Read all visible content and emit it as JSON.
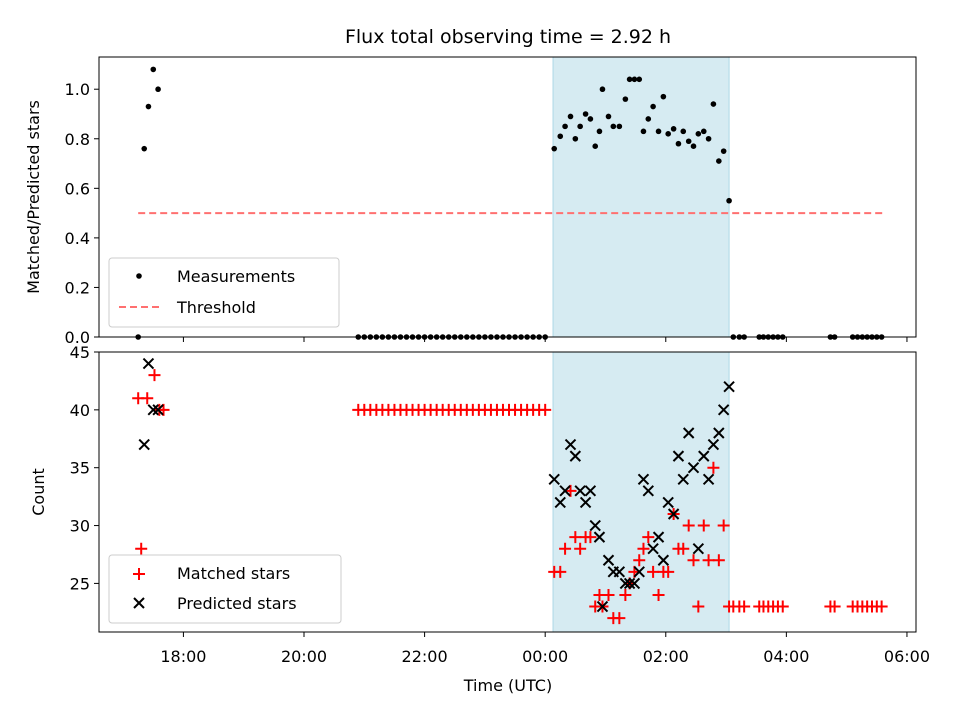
{
  "chart_data": {
    "title": "Flux total observing time = 2.92 h",
    "xlabel": "Time (UTC)",
    "x_unit": "hours since 00:00 UTC",
    "xlim": [
      -7.4,
      6.15
    ],
    "x_ticks": [
      {
        "value": -6,
        "label": "18:00"
      },
      {
        "value": -4,
        "label": "20:00"
      },
      {
        "value": -2,
        "label": "22:00"
      },
      {
        "value": 0,
        "label": "00:00"
      },
      {
        "value": 2,
        "label": "02:00"
      },
      {
        "value": 4,
        "label": "04:00"
      },
      {
        "value": 6,
        "label": "06:00"
      }
    ],
    "shaded_interval": {
      "start": 0.13,
      "end": 3.05,
      "color": "#add8e6"
    },
    "panels": [
      {
        "name": "ratio",
        "type": "scatter",
        "ylabel": "Matched/Predicted stars",
        "ylim": [
          0,
          1.13
        ],
        "y_ticks": [
          {
            "value": 0.0,
            "label": "0.0"
          },
          {
            "value": 0.2,
            "label": "0.2"
          },
          {
            "value": 0.4,
            "label": "0.4"
          },
          {
            "value": 0.6,
            "label": "0.6"
          },
          {
            "value": 0.8,
            "label": "0.8"
          },
          {
            "value": 1.0,
            "label": "1.0"
          }
        ],
        "legend_position": "lower-left",
        "series": [
          {
            "name": "Measurements",
            "marker": "dot",
            "color": "#000000",
            "points": [
              [
                -6.75,
                0.0
              ],
              [
                -6.65,
                0.76
              ],
              [
                -6.58,
                0.93
              ],
              [
                -6.5,
                1.08
              ],
              [
                -6.42,
                1.0
              ],
              [
                -3.1,
                0.0
              ],
              [
                -3.0,
                0.0
              ],
              [
                -2.9,
                0.0
              ],
              [
                -2.8,
                0.0
              ],
              [
                -2.7,
                0.0
              ],
              [
                -2.6,
                0.0
              ],
              [
                -2.5,
                0.0
              ],
              [
                -2.4,
                0.0
              ],
              [
                -2.3,
                0.0
              ],
              [
                -2.2,
                0.0
              ],
              [
                -2.1,
                0.0
              ],
              [
                -2.0,
                0.0
              ],
              [
                -1.9,
                0.0
              ],
              [
                -1.8,
                0.0
              ],
              [
                -1.7,
                0.0
              ],
              [
                -1.6,
                0.0
              ],
              [
                -1.5,
                0.0
              ],
              [
                -1.4,
                0.0
              ],
              [
                -1.3,
                0.0
              ],
              [
                -1.2,
                0.0
              ],
              [
                -1.1,
                0.0
              ],
              [
                -1.0,
                0.0
              ],
              [
                -0.9,
                0.0
              ],
              [
                -0.8,
                0.0
              ],
              [
                -0.7,
                0.0
              ],
              [
                -0.6,
                0.0
              ],
              [
                -0.5,
                0.0
              ],
              [
                -0.4,
                0.0
              ],
              [
                -0.3,
                0.0
              ],
              [
                -0.2,
                0.0
              ],
              [
                -0.1,
                0.0
              ],
              [
                0.0,
                0.0
              ],
              [
                0.15,
                0.76
              ],
              [
                0.25,
                0.81
              ],
              [
                0.33,
                0.85
              ],
              [
                0.42,
                0.89
              ],
              [
                0.5,
                0.8
              ],
              [
                0.58,
                0.85
              ],
              [
                0.67,
                0.9
              ],
              [
                0.75,
                0.88
              ],
              [
                0.83,
                0.77
              ],
              [
                0.9,
                0.83
              ],
              [
                0.95,
                1.0
              ],
              [
                1.05,
                0.89
              ],
              [
                1.13,
                0.85
              ],
              [
                1.23,
                0.85
              ],
              [
                1.33,
                0.96
              ],
              [
                1.4,
                1.04
              ],
              [
                1.48,
                1.04
              ],
              [
                1.56,
                1.04
              ],
              [
                1.63,
                0.83
              ],
              [
                1.71,
                0.88
              ],
              [
                1.79,
                0.93
              ],
              [
                1.88,
                0.83
              ],
              [
                1.96,
                0.97
              ],
              [
                2.04,
                0.82
              ],
              [
                2.13,
                0.84
              ],
              [
                2.21,
                0.78
              ],
              [
                2.29,
                0.83
              ],
              [
                2.38,
                0.79
              ],
              [
                2.46,
                0.77
              ],
              [
                2.54,
                0.82
              ],
              [
                2.63,
                0.83
              ],
              [
                2.71,
                0.8
              ],
              [
                2.79,
                0.94
              ],
              [
                2.88,
                0.71
              ],
              [
                2.96,
                0.75
              ],
              [
                3.05,
                0.55
              ],
              [
                3.12,
                0.0
              ],
              [
                3.22,
                0.0
              ],
              [
                3.3,
                0.0
              ],
              [
                3.55,
                0.0
              ],
              [
                3.62,
                0.0
              ],
              [
                3.7,
                0.0
              ],
              [
                3.78,
                0.0
              ],
              [
                3.86,
                0.0
              ],
              [
                3.94,
                0.0
              ],
              [
                4.73,
                0.0
              ],
              [
                4.8,
                0.0
              ],
              [
                5.1,
                0.0
              ],
              [
                5.18,
                0.0
              ],
              [
                5.26,
                0.0
              ],
              [
                5.34,
                0.0
              ],
              [
                5.42,
                0.0
              ],
              [
                5.5,
                0.0
              ],
              [
                5.58,
                0.0
              ]
            ]
          },
          {
            "name": "Threshold",
            "marker": "dashed-line",
            "color": "#ff7070",
            "points": [
              [
                -6.75,
                0.5
              ],
              [
                5.6,
                0.5
              ]
            ]
          }
        ]
      },
      {
        "name": "counts",
        "type": "scatter",
        "ylabel": "Count",
        "ylim": [
          20.8,
          45
        ],
        "y_ticks": [
          {
            "value": 25,
            "label": "25"
          },
          {
            "value": 30,
            "label": "30"
          },
          {
            "value": 35,
            "label": "35"
          },
          {
            "value": 40,
            "label": "40"
          },
          {
            "value": 45,
            "label": "45"
          }
        ],
        "legend_position": "lower-left",
        "series": [
          {
            "name": "Matched stars",
            "marker": "plus",
            "color": "#ff0000",
            "points": [
              [
                -6.75,
                41
              ],
              [
                -6.6,
                41
              ],
              [
                -6.7,
                28
              ],
              [
                -6.48,
                43
              ],
              [
                -6.4,
                40
              ],
              [
                -6.33,
                40
              ],
              [
                -3.1,
                40
              ],
              [
                -3.0,
                40
              ],
              [
                -2.9,
                40
              ],
              [
                -2.8,
                40
              ],
              [
                -2.7,
                40
              ],
              [
                -2.6,
                40
              ],
              [
                -2.5,
                40
              ],
              [
                -2.4,
                40
              ],
              [
                -2.3,
                40
              ],
              [
                -2.2,
                40
              ],
              [
                -2.1,
                40
              ],
              [
                -2.0,
                40
              ],
              [
                -1.9,
                40
              ],
              [
                -1.8,
                40
              ],
              [
                -1.7,
                40
              ],
              [
                -1.6,
                40
              ],
              [
                -1.5,
                40
              ],
              [
                -1.4,
                40
              ],
              [
                -1.3,
                40
              ],
              [
                -1.2,
                40
              ],
              [
                -1.1,
                40
              ],
              [
                -1.0,
                40
              ],
              [
                -0.9,
                40
              ],
              [
                -0.8,
                40
              ],
              [
                -0.7,
                40
              ],
              [
                -0.6,
                40
              ],
              [
                -0.5,
                40
              ],
              [
                -0.4,
                40
              ],
              [
                -0.3,
                40
              ],
              [
                -0.2,
                40
              ],
              [
                -0.1,
                40
              ],
              [
                0.0,
                40
              ],
              [
                0.15,
                26
              ],
              [
                0.25,
                26
              ],
              [
                0.33,
                28
              ],
              [
                0.42,
                33
              ],
              [
                0.5,
                29
              ],
              [
                0.58,
                28
              ],
              [
                0.67,
                29
              ],
              [
                0.75,
                29
              ],
              [
                0.83,
                23
              ],
              [
                0.9,
                24
              ],
              [
                0.95,
                23
              ],
              [
                1.05,
                24
              ],
              [
                1.13,
                22
              ],
              [
                1.23,
                22
              ],
              [
                1.33,
                24
              ],
              [
                1.4,
                25
              ],
              [
                1.48,
                26
              ],
              [
                1.56,
                27
              ],
              [
                1.63,
                28
              ],
              [
                1.71,
                29
              ],
              [
                1.79,
                26
              ],
              [
                1.88,
                24
              ],
              [
                1.96,
                26
              ],
              [
                2.04,
                26
              ],
              [
                2.13,
                31
              ],
              [
                2.21,
                28
              ],
              [
                2.29,
                28
              ],
              [
                2.38,
                30
              ],
              [
                2.46,
                27
              ],
              [
                2.54,
                23
              ],
              [
                2.63,
                30
              ],
              [
                2.71,
                27
              ],
              [
                2.79,
                35
              ],
              [
                2.88,
                27
              ],
              [
                2.96,
                30
              ],
              [
                3.05,
                23
              ],
              [
                3.12,
                23
              ],
              [
                3.22,
                23
              ],
              [
                3.3,
                23
              ],
              [
                3.55,
                23
              ],
              [
                3.62,
                23
              ],
              [
                3.7,
                23
              ],
              [
                3.78,
                23
              ],
              [
                3.86,
                23
              ],
              [
                3.94,
                23
              ],
              [
                4.73,
                23
              ],
              [
                4.8,
                23
              ],
              [
                5.1,
                23
              ],
              [
                5.18,
                23
              ],
              [
                5.26,
                23
              ],
              [
                5.34,
                23
              ],
              [
                5.42,
                23
              ],
              [
                5.5,
                23
              ],
              [
                5.58,
                23
              ]
            ]
          },
          {
            "name": "Predicted stars",
            "marker": "x",
            "color": "#000000",
            "points": [
              [
                -6.65,
                37
              ],
              [
                -6.58,
                44
              ],
              [
                -6.5,
                40
              ],
              [
                -6.42,
                40
              ],
              [
                0.15,
                34
              ],
              [
                0.25,
                32
              ],
              [
                0.33,
                33
              ],
              [
                0.42,
                37
              ],
              [
                0.5,
                36
              ],
              [
                0.58,
                33
              ],
              [
                0.67,
                32
              ],
              [
                0.75,
                33
              ],
              [
                0.83,
                30
              ],
              [
                0.9,
                29
              ],
              [
                0.95,
                23
              ],
              [
                1.05,
                27
              ],
              [
                1.13,
                26
              ],
              [
                1.23,
                26
              ],
              [
                1.33,
                25
              ],
              [
                1.4,
                25
              ],
              [
                1.48,
                25
              ],
              [
                1.56,
                26
              ],
              [
                1.63,
                34
              ],
              [
                1.71,
                33
              ],
              [
                1.79,
                28
              ],
              [
                1.88,
                29
              ],
              [
                1.96,
                27
              ],
              [
                2.04,
                32
              ],
              [
                2.13,
                31
              ],
              [
                2.21,
                36
              ],
              [
                2.29,
                34
              ],
              [
                2.38,
                38
              ],
              [
                2.46,
                35
              ],
              [
                2.54,
                28
              ],
              [
                2.63,
                36
              ],
              [
                2.71,
                34
              ],
              [
                2.79,
                37
              ],
              [
                2.88,
                38
              ],
              [
                2.96,
                40
              ],
              [
                3.05,
                42
              ]
            ]
          }
        ]
      }
    ]
  }
}
